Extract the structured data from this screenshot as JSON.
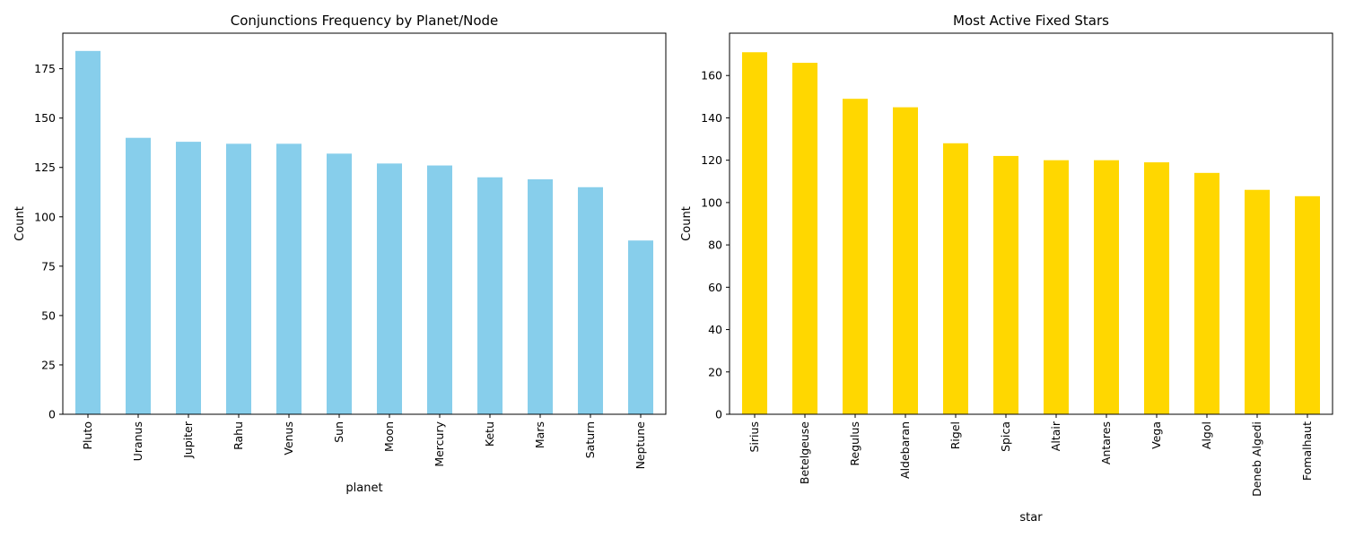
{
  "chart_data": [
    {
      "type": "bar",
      "title": "Conjunctions Frequency by Planet/Node",
      "xlabel": "planet",
      "ylabel": "Count",
      "ylim": [
        0,
        193
      ],
      "yticks": [
        0,
        25,
        50,
        75,
        100,
        125,
        150,
        175
      ],
      "bar_color": "#87ceeb",
      "grid": false,
      "categories": [
        "Pluto",
        "Uranus",
        "Jupiter",
        "Rahu",
        "Venus",
        "Sun",
        "Moon",
        "Mercury",
        "Ketu",
        "Mars",
        "Saturn",
        "Neptune"
      ],
      "values": [
        184,
        140,
        138,
        137,
        137,
        132,
        127,
        126,
        120,
        119,
        115,
        88
      ]
    },
    {
      "type": "bar",
      "title": "Most Active Fixed Stars",
      "xlabel": "star",
      "ylabel": "Count",
      "ylim": [
        0,
        180
      ],
      "yticks": [
        0,
        20,
        40,
        60,
        80,
        100,
        120,
        140,
        160
      ],
      "bar_color": "#ffd700",
      "grid": false,
      "categories": [
        "Sirius",
        "Betelgeuse",
        "Regulus",
        "Aldebaran",
        "Rigel",
        "Spica",
        "Altair",
        "Antares",
        "Vega",
        "Algol",
        "Deneb Algedi",
        "Fomalhaut"
      ],
      "values": [
        171,
        166,
        149,
        145,
        128,
        122,
        120,
        120,
        119,
        114,
        106,
        103
      ]
    }
  ]
}
